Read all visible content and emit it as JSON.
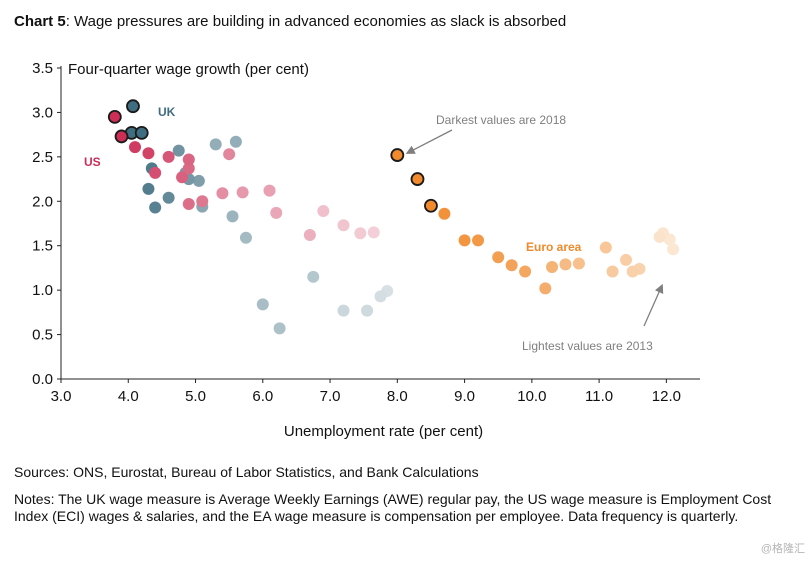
{
  "title": {
    "prefix": "Chart 5",
    "text": ":  Wage pressures are building in advanced economies as slack is absorbed"
  },
  "sources": "Sources: ONS, Eurostat, Bureau of Labor Statistics, and Bank Calculations",
  "notes": "Notes: The UK wage measure is Average Weekly Earnings (AWE) regular pay, the US wage measure is Employment Cost Index (ECI) wages & salaries, and the EA wage measure is compensation per employee. Data frequency is quarterly.",
  "watermark": "@格隆汇",
  "chart_data": {
    "type": "scatter",
    "title": "Wage pressures are building in advanced economies as slack is absorbed",
    "xlabel": "Unemployment rate (per cent)",
    "ylabel": "Four-quarter wage growth (per cent)",
    "xlim": [
      3.0,
      12.5
    ],
    "ylim": [
      0.0,
      3.5
    ],
    "x_ticks": [
      "3.0",
      "4.0",
      "5.0",
      "6.0",
      "7.0",
      "8.0",
      "9.0",
      "10.0",
      "11.0",
      "12.0"
    ],
    "y_ticks": [
      "0.0",
      "0.5",
      "1.0",
      "1.5",
      "2.0",
      "2.5",
      "3.0",
      "3.5"
    ],
    "grid": false,
    "annotations": [
      {
        "text": "Darkest values are 2018",
        "points_to": [
          8.0,
          2.52
        ]
      },
      {
        "text": "Lightest values are 2013",
        "points_to": [
          11.95,
          1.12
        ]
      }
    ],
    "series": [
      {
        "name": "UK",
        "color": "#3f6e80",
        "points": [
          {
            "x": 7.85,
            "y": 0.99,
            "shade": 0.1
          },
          {
            "x": 7.75,
            "y": 0.93,
            "shade": 0.12
          },
          {
            "x": 7.55,
            "y": 0.77,
            "shade": 0.15
          },
          {
            "x": 7.2,
            "y": 0.77,
            "shade": 0.18
          },
          {
            "x": 6.75,
            "y": 1.15,
            "shade": 0.3
          },
          {
            "x": 6.25,
            "y": 0.57,
            "shade": 0.35
          },
          {
            "x": 6.0,
            "y": 0.84,
            "shade": 0.38
          },
          {
            "x": 5.75,
            "y": 1.59,
            "shade": 0.4
          },
          {
            "x": 5.55,
            "y": 1.83,
            "shade": 0.45
          },
          {
            "x": 5.6,
            "y": 2.67,
            "shade": 0.5
          },
          {
            "x": 5.3,
            "y": 2.64,
            "shade": 0.5
          },
          {
            "x": 5.1,
            "y": 1.94,
            "shade": 0.55
          },
          {
            "x": 5.05,
            "y": 2.23,
            "shade": 0.62
          },
          {
            "x": 4.85,
            "y": 2.32,
            "shade": 0.65
          },
          {
            "x": 4.9,
            "y": 2.25,
            "shade": 0.68
          },
          {
            "x": 4.75,
            "y": 2.57,
            "shade": 0.7
          },
          {
            "x": 4.6,
            "y": 2.04,
            "shade": 0.78
          },
          {
            "x": 4.4,
            "y": 1.93,
            "shade": 0.85
          },
          {
            "x": 4.3,
            "y": 2.14,
            "shade": 0.88
          },
          {
            "x": 4.35,
            "y": 2.37,
            "shade": 0.9
          },
          {
            "x": 4.05,
            "y": 2.77,
            "shade": 1.0,
            "outline": true
          },
          {
            "x": 4.2,
            "y": 2.77,
            "shade": 1.0,
            "outline": true
          },
          {
            "x": 4.07,
            "y": 3.07,
            "shade": 1.0,
            "outline": true
          }
        ]
      },
      {
        "name": "US",
        "color": "#cc2e56",
        "points": [
          {
            "x": 7.65,
            "y": 1.65,
            "shade": 0.12
          },
          {
            "x": 7.45,
            "y": 1.64,
            "shade": 0.15
          },
          {
            "x": 7.2,
            "y": 1.73,
            "shade": 0.18
          },
          {
            "x": 6.9,
            "y": 1.89,
            "shade": 0.2
          },
          {
            "x": 6.7,
            "y": 1.62,
            "shade": 0.3
          },
          {
            "x": 6.2,
            "y": 1.87,
            "shade": 0.35
          },
          {
            "x": 6.1,
            "y": 2.12,
            "shade": 0.38
          },
          {
            "x": 5.7,
            "y": 2.1,
            "shade": 0.42
          },
          {
            "x": 5.4,
            "y": 2.09,
            "shade": 0.48
          },
          {
            "x": 5.5,
            "y": 2.53,
            "shade": 0.52
          },
          {
            "x": 5.1,
            "y": 2.0,
            "shade": 0.6
          },
          {
            "x": 4.9,
            "y": 1.97,
            "shade": 0.65
          },
          {
            "x": 4.9,
            "y": 2.37,
            "shade": 0.68
          },
          {
            "x": 4.9,
            "y": 2.47,
            "shade": 0.7
          },
          {
            "x": 4.8,
            "y": 2.27,
            "shade": 0.72
          },
          {
            "x": 4.6,
            "y": 2.5,
            "shade": 0.78
          },
          {
            "x": 4.4,
            "y": 2.32,
            "shade": 0.82
          },
          {
            "x": 4.3,
            "y": 2.54,
            "shade": 0.88
          },
          {
            "x": 4.1,
            "y": 2.61,
            "shade": 0.92
          },
          {
            "x": 3.9,
            "y": 2.73,
            "shade": 1.0,
            "outline": true
          },
          {
            "x": 3.8,
            "y": 2.95,
            "shade": 1.0,
            "outline": true
          }
        ]
      },
      {
        "name": "Euro area",
        "color": "#f08a2c",
        "points": [
          {
            "x": 12.1,
            "y": 1.46,
            "shade": 0.1
          },
          {
            "x": 12.05,
            "y": 1.57,
            "shade": 0.1
          },
          {
            "x": 11.95,
            "y": 1.64,
            "shade": 0.12
          },
          {
            "x": 11.9,
            "y": 1.6,
            "shade": 0.15
          },
          {
            "x": 11.6,
            "y": 1.24,
            "shade": 0.3
          },
          {
            "x": 11.5,
            "y": 1.21,
            "shade": 0.32
          },
          {
            "x": 11.4,
            "y": 1.34,
            "shade": 0.35
          },
          {
            "x": 11.2,
            "y": 1.21,
            "shade": 0.38
          },
          {
            "x": 11.1,
            "y": 1.48,
            "shade": 0.42
          },
          {
            "x": 10.7,
            "y": 1.3,
            "shade": 0.48
          },
          {
            "x": 10.5,
            "y": 1.29,
            "shade": 0.52
          },
          {
            "x": 10.3,
            "y": 1.26,
            "shade": 0.6
          },
          {
            "x": 10.2,
            "y": 1.02,
            "shade": 0.66
          },
          {
            "x": 9.9,
            "y": 1.21,
            "shade": 0.72
          },
          {
            "x": 9.7,
            "y": 1.28,
            "shade": 0.76
          },
          {
            "x": 9.5,
            "y": 1.37,
            "shade": 0.8
          },
          {
            "x": 9.2,
            "y": 1.56,
            "shade": 0.85
          },
          {
            "x": 9.0,
            "y": 1.56,
            "shade": 0.88
          },
          {
            "x": 8.7,
            "y": 1.86,
            "shade": 0.92
          },
          {
            "x": 8.5,
            "y": 1.95,
            "shade": 1.0,
            "outline": true
          },
          {
            "x": 8.3,
            "y": 2.25,
            "shade": 1.0,
            "outline": true
          },
          {
            "x": 8.0,
            "y": 2.52,
            "shade": 1.0,
            "outline": true
          }
        ]
      }
    ]
  }
}
